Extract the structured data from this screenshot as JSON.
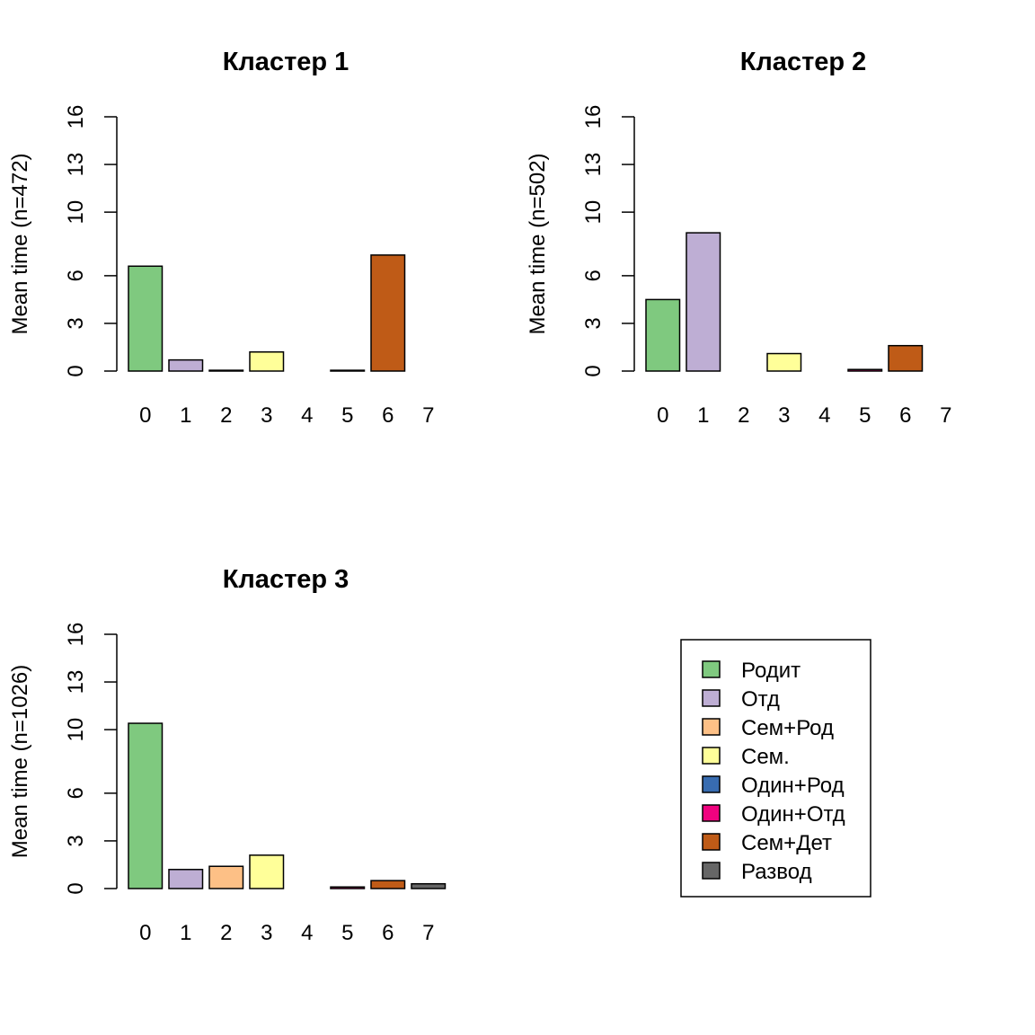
{
  "chart_data": [
    {
      "type": "bar",
      "title": "Кластер 1",
      "ylabel": "Mean time (n=472)",
      "xlabel": "",
      "categories": [
        "0",
        "1",
        "2",
        "3",
        "4",
        "5",
        "6",
        "7"
      ],
      "values": [
        6.6,
        0.7,
        0.05,
        1.2,
        0.0,
        0.05,
        7.3,
        0.0
      ],
      "ylim": [
        0,
        16
      ],
      "yticks": [
        "0",
        "3",
        "6",
        "10",
        "13",
        "16"
      ],
      "ytick_values": [
        0,
        3,
        6,
        10,
        13,
        16
      ]
    },
    {
      "type": "bar",
      "title": "Кластер 2",
      "ylabel": "Mean time (n=502)",
      "xlabel": "",
      "categories": [
        "0",
        "1",
        "2",
        "3",
        "4",
        "5",
        "6",
        "7"
      ],
      "values": [
        4.5,
        8.7,
        0.0,
        1.1,
        0.0,
        0.1,
        1.6,
        0.0
      ],
      "ylim": [
        0,
        16
      ],
      "yticks": [
        "0",
        "3",
        "6",
        "10",
        "13",
        "16"
      ],
      "ytick_values": [
        0,
        3,
        6,
        10,
        13,
        16
      ]
    },
    {
      "type": "bar",
      "title": "Кластер 3",
      "ylabel": "Mean time (n=1026)",
      "xlabel": "",
      "categories": [
        "0",
        "1",
        "2",
        "3",
        "4",
        "5",
        "6",
        "7"
      ],
      "values": [
        10.4,
        1.2,
        1.4,
        2.1,
        0.0,
        0.1,
        0.5,
        0.3
      ],
      "ylim": [
        0,
        16
      ],
      "yticks": [
        "0",
        "3",
        "6",
        "10",
        "13",
        "16"
      ],
      "ytick_values": [
        0,
        3,
        6,
        10,
        13,
        16
      ]
    }
  ],
  "legend": {
    "placement": "bottom-right",
    "items": [
      {
        "label": "Родит",
        "color": "#7FC97F"
      },
      {
        "label": "Отд",
        "color": "#BEAED4"
      },
      {
        "label": "Сем+Род",
        "color": "#FDC086"
      },
      {
        "label": "Сем.",
        "color": "#FFFF99"
      },
      {
        "label": "Один+Род",
        "color": "#386CB0"
      },
      {
        "label": "Один+Отд",
        "color": "#F0027F"
      },
      {
        "label": "Сем+Дет",
        "color": "#BF5B17"
      },
      {
        "label": "Развод",
        "color": "#666666"
      }
    ]
  }
}
